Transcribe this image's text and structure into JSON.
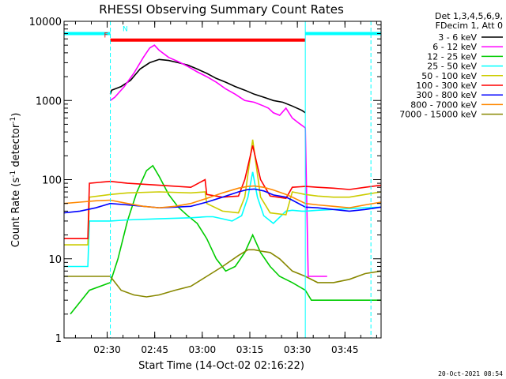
{
  "chart_data": {
    "type": "line",
    "title": "RHESSI Observing Summary Count Rates",
    "xlabel": "Start Time (14-Oct-02 02:16:22)",
    "ylabel_main": "Count Rate (s",
    "ylabel_exp1": "-1",
    "ylabel_mid": " detector",
    "ylabel_exp2": "-1",
    "ylabel_end": ")",
    "yscale": "log",
    "ylim": [
      1,
      10000
    ],
    "xlim_minutes": [
      0,
      100
    ],
    "x_ticks": [
      {
        "label": "02:30",
        "min": 13.6
      },
      {
        "label": "02:45",
        "min": 28.6
      },
      {
        "label": "03:00",
        "min": 43.6
      },
      {
        "label": "03:15",
        "min": 58.6
      },
      {
        "label": "03:30",
        "min": 73.6
      },
      {
        "label": "03:45",
        "min": 88.6
      }
    ],
    "y_ticks": [
      {
        "label": "10000",
        "value": 10000
      },
      {
        "label": "1000",
        "value": 1000
      },
      {
        "label": "100",
        "value": 100
      },
      {
        "label": "10",
        "value": 10
      },
      {
        "label": "1",
        "value": 1
      }
    ],
    "legend_header": [
      "Det 1,3,4,5,6,9,",
      "FDecim 1, Att 0"
    ],
    "series": [
      {
        "name": "3 - 6 keV",
        "color": "#000000",
        "x": [
          14.6,
          15,
          18,
          21,
          24,
          27,
          30,
          33,
          36,
          39,
          42,
          45,
          48,
          51,
          54,
          57,
          60,
          63,
          66,
          69,
          72,
          75,
          76.1
        ],
        "values": [
          1200,
          1350,
          1500,
          1800,
          2500,
          3000,
          3300,
          3200,
          3000,
          2800,
          2500,
          2200,
          1900,
          1700,
          1500,
          1350,
          1200,
          1100,
          1000,
          950,
          850,
          750,
          700
        ]
      },
      {
        "name": "6 - 12 keV",
        "color": "#ff00ff",
        "x": [
          14.6,
          16,
          19,
          22,
          25,
          27,
          28.5,
          30,
          33,
          36,
          39,
          42,
          45,
          48,
          51,
          54,
          57,
          60,
          63,
          64.5,
          66,
          68,
          70,
          72,
          74,
          76.1,
          77,
          80,
          83
        ],
        "values": [
          1000,
          1100,
          1500,
          2200,
          3500,
          4600,
          5000,
          4300,
          3500,
          3100,
          2700,
          2300,
          2000,
          1700,
          1400,
          1200,
          1000,
          950,
          850,
          800,
          700,
          650,
          800,
          600,
          520,
          450,
          6,
          6,
          6
        ]
      },
      {
        "name": "12 - 25 keV",
        "color": "#00cc00",
        "x": [
          2,
          8,
          14.6,
          17,
          20,
          23,
          26,
          28,
          30,
          33,
          36,
          39,
          42,
          45,
          48,
          51,
          54,
          57,
          59.5,
          62,
          65,
          68,
          72,
          76.1,
          78,
          84,
          90,
          96,
          100
        ],
        "values": [
          2,
          4,
          5,
          10,
          30,
          70,
          130,
          150,
          110,
          65,
          45,
          35,
          28,
          18,
          10,
          7,
          8,
          12,
          20,
          12,
          8,
          6,
          5,
          4,
          3,
          3,
          3,
          3,
          3
        ]
      },
      {
        "name": "25 - 50 keV",
        "color": "#00ffff",
        "x": [
          0,
          3.6,
          4,
          7.5,
          8,
          14.6,
          20,
          30,
          40,
          45,
          47,
          50,
          53,
          56,
          58,
          59.5,
          61,
          63,
          66,
          70,
          72,
          75,
          76.1,
          80,
          85,
          90,
          95,
          100
        ],
        "values": [
          8,
          8,
          8,
          8,
          30,
          30,
          31,
          32,
          33,
          34,
          34,
          32,
          30,
          35,
          60,
          125,
          60,
          35,
          28,
          40,
          41,
          40,
          40,
          41,
          42,
          43,
          44,
          45
        ]
      },
      {
        "name": "50 - 100 keV",
        "color": "#cccc00",
        "x": [
          0,
          3.6,
          4,
          7.5,
          8,
          14.6,
          20,
          30,
          40,
          44.5,
          45,
          50,
          55,
          57,
          59.5,
          62,
          65,
          70,
          72,
          76.1,
          80,
          85,
          90,
          95,
          100
        ],
        "values": [
          15,
          15,
          15,
          15,
          60,
          65,
          68,
          70,
          68,
          70,
          50,
          40,
          38,
          60,
          320,
          60,
          38,
          36,
          70,
          65,
          62,
          60,
          60,
          65,
          70
        ]
      },
      {
        "name": "100 - 300 keV",
        "color": "#ff0000",
        "x": [
          0,
          3.6,
          4,
          7.5,
          8,
          14.6,
          20,
          30,
          40,
          44.5,
          45,
          50,
          55,
          57,
          59.5,
          62,
          65,
          70,
          72,
          76.1,
          80,
          85,
          90,
          95,
          100
        ],
        "values": [
          18,
          18,
          18,
          18,
          90,
          95,
          90,
          85,
          80,
          100,
          65,
          60,
          62,
          100,
          270,
          100,
          62,
          58,
          80,
          82,
          80,
          78,
          75,
          80,
          85
        ]
      },
      {
        "name": "300 - 800 keV",
        "color": "#0000ff",
        "x": [
          0,
          5,
          10,
          14.6,
          20,
          25,
          30,
          35,
          40,
          45,
          50,
          55,
          58,
          60,
          63,
          66,
          70,
          72,
          76.1,
          80,
          85,
          90,
          95,
          100
        ],
        "values": [
          38,
          40,
          44,
          50,
          48,
          46,
          44,
          45,
          46,
          52,
          60,
          70,
          75,
          76,
          72,
          64,
          60,
          55,
          45,
          44,
          42,
          40,
          42,
          45
        ]
      },
      {
        "name": "800 - 7000 keV",
        "color": "#ff8800",
        "x": [
          0,
          5,
          10,
          14.6,
          20,
          25,
          30,
          35,
          40,
          45,
          50,
          55,
          58,
          60,
          63,
          66,
          70,
          72,
          76.1,
          80,
          85,
          90,
          95,
          100
        ],
        "values": [
          50,
          52,
          54,
          55,
          50,
          46,
          44,
          46,
          50,
          58,
          68,
          78,
          82,
          83,
          80,
          74,
          65,
          60,
          50,
          48,
          46,
          44,
          48,
          52
        ]
      },
      {
        "name": "7000 - 15000 keV",
        "color": "#888800",
        "x": [
          0,
          5,
          10,
          14.6,
          18,
          22,
          26,
          30,
          35,
          40,
          45,
          50,
          55,
          58,
          60,
          62,
          65,
          68,
          72,
          76.1,
          80,
          85,
          90,
          95,
          100
        ],
        "values": [
          6,
          6,
          6,
          6,
          4,
          3.5,
          3.3,
          3.5,
          4,
          4.5,
          6,
          8,
          11,
          13,
          13,
          12.5,
          12,
          10,
          7,
          6,
          5,
          5,
          5.5,
          6.5,
          7
        ]
      }
    ],
    "state_bars": [
      {
        "label": "N",
        "color": "#00ffff",
        "ranges": [
          [
            0,
            14.6
          ],
          [
            76.1,
            100
          ]
        ],
        "value": 7000
      },
      {
        "label": "F",
        "color": "#ff0000",
        "ranges": [
          [
            14.6,
            76.1
          ]
        ],
        "value": 5800
      }
    ],
    "vertical_markers": [
      {
        "min": 14.6,
        "style": "dashed",
        "color": "#00ffff"
      },
      {
        "min": 76.1,
        "style": "solid",
        "color": "#00ffff"
      },
      {
        "min": 96.8,
        "style": "dashed",
        "color": "#00ffff"
      }
    ],
    "footer": "20-Oct-2021 08:54"
  }
}
